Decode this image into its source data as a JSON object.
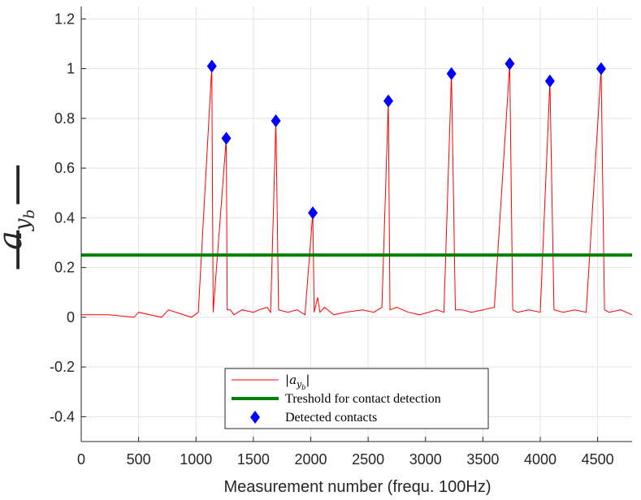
{
  "chart_data": {
    "type": "line",
    "xlabel": "Measurement number (frequ. 100Hz)",
    "ylabel_symbol": "a",
    "ylabel_subscript": "y",
    "ylabel_subsubscript": "b",
    "xlim": [
      0,
      4800
    ],
    "ylim": [
      -0.5,
      1.25
    ],
    "xticks": [
      0,
      500,
      1000,
      1500,
      2000,
      2500,
      3000,
      3500,
      4000,
      4500
    ],
    "yticks": [
      -0.4,
      -0.2,
      0,
      0.2,
      0.4,
      0.6,
      0.8,
      1,
      1.2
    ],
    "ytick_labels": [
      "-0.4",
      "-0.2",
      "0",
      "0.2",
      "0.4",
      "0.6",
      "0.8",
      "1",
      "1.2"
    ],
    "grid": true,
    "legend_position": "bottom-center",
    "series": [
      {
        "name": "|a_yb|",
        "legend_symbol": "a",
        "legend_subscript": "y",
        "legend_subsubscript": "b",
        "style": "line",
        "color": "#ff0000",
        "x": [
          0,
          240,
          460,
          500,
          700,
          760,
          960,
          1020,
          1138,
          1150,
          1264,
          1272,
          1300,
          1330,
          1400,
          1500,
          1550,
          1620,
          1650,
          1696,
          1720,
          1800,
          1880,
          1950,
          2018,
          2030,
          2060,
          2080,
          2120,
          2200,
          2300,
          2450,
          2550,
          2620,
          2676,
          2690,
          2750,
          2850,
          2950,
          3100,
          3160,
          3226,
          3260,
          3320,
          3400,
          3500,
          3600,
          3734,
          3760,
          3800,
          3900,
          4000,
          4084,
          4120,
          4200,
          4300,
          4400,
          4530,
          4560,
          4600,
          4700,
          4800
        ],
        "values": [
          0.01,
          0.01,
          0.0,
          0.02,
          0.0,
          0.03,
          0.0,
          0.02,
          1.01,
          0.02,
          0.72,
          0.03,
          0.03,
          0.01,
          0.03,
          0.02,
          0.03,
          0.04,
          0.02,
          0.79,
          0.03,
          0.02,
          0.03,
          0.01,
          0.42,
          0.02,
          0.08,
          0.02,
          0.04,
          0.01,
          0.02,
          0.03,
          0.02,
          0.04,
          0.87,
          0.03,
          0.04,
          0.02,
          0.01,
          0.03,
          0.02,
          0.98,
          0.03,
          0.03,
          0.02,
          0.03,
          0.04,
          1.02,
          0.03,
          0.02,
          0.03,
          0.02,
          0.95,
          0.03,
          0.02,
          0.03,
          0.02,
          1.0,
          0.03,
          0.02,
          0.03,
          0.01
        ]
      },
      {
        "name": "Treshold for contact detection",
        "style": "hline",
        "color": "#008000",
        "y": 0.25
      },
      {
        "name": "Detected contacts",
        "style": "marker-diamond",
        "color": "#0000ff",
        "x": [
          1138,
          1264,
          1696,
          2018,
          2676,
          3226,
          3734,
          4084,
          4530
        ],
        "values": [
          1.01,
          0.72,
          0.79,
          0.42,
          0.87,
          0.98,
          1.02,
          0.95,
          1.0
        ]
      }
    ]
  }
}
